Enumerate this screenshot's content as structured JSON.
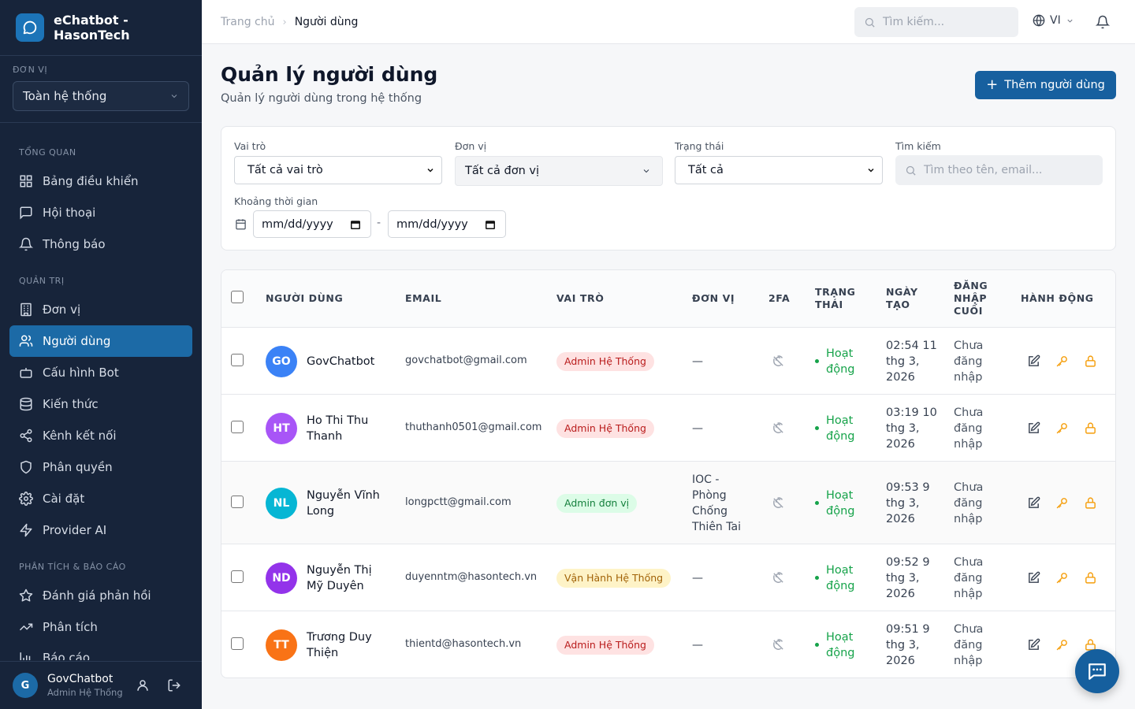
{
  "app": {
    "name": "eChatbot - HasonTech"
  },
  "sidebar": {
    "unit_label": "ĐƠN VỊ",
    "unit_value": "Toàn hệ thống",
    "sections": {
      "overview": "TỔNG QUAN",
      "admin": "QUẢN TRỊ",
      "analytics": "PHÂN TÍCH & BÁO CÁO"
    },
    "items": [
      {
        "label": "Bảng điều khiển",
        "icon": "dashboard-icon"
      },
      {
        "label": "Hội thoại",
        "icon": "chat-icon"
      },
      {
        "label": "Thông báo",
        "icon": "bell-icon"
      },
      {
        "label": "Đơn vị",
        "icon": "building-icon"
      },
      {
        "label": "Người dùng",
        "icon": "users-icon",
        "active": true
      },
      {
        "label": "Cấu hình Bot",
        "icon": "bot-icon"
      },
      {
        "label": "Kiến thức",
        "icon": "database-icon"
      },
      {
        "label": "Kênh kết nối",
        "icon": "share-icon"
      },
      {
        "label": "Phân quyền",
        "icon": "shield-icon"
      },
      {
        "label": "Cài đặt",
        "icon": "gear-icon"
      },
      {
        "label": "Provider AI",
        "icon": "bolt-icon"
      },
      {
        "label": "Đánh giá phản hồi",
        "icon": "star-icon"
      },
      {
        "label": "Phân tích",
        "icon": "trend-icon"
      },
      {
        "label": "Báo cáo",
        "icon": "bar-chart-icon"
      }
    ],
    "user": {
      "initial": "G",
      "name": "GovChatbot",
      "role": "Admin Hệ Thống"
    }
  },
  "topbar": {
    "breadcrumb": [
      "Trang chủ",
      "Người dùng"
    ],
    "search_placeholder": "Tìm kiếm...",
    "lang": "VI"
  },
  "page": {
    "title": "Quản lý người dùng",
    "subtitle": "Quản lý người dùng trong hệ thống",
    "add_button": "Thêm người dùng"
  },
  "filters": {
    "role_label": "Vai trò",
    "role_value": "Tất cả vai trò",
    "unit_label": "Đơn vị",
    "unit_value": "Tất cả đơn vị",
    "status_label": "Trạng thái",
    "status_value": "Tất cả",
    "search_label": "Tìm kiếm",
    "search_placeholder": "Tìm theo tên, email...",
    "range_label": "Khoảng thời gian",
    "date_from": "mm/dd/yyyy",
    "date_to": "mm/dd/yyyy",
    "range_sep": "-"
  },
  "table": {
    "headers": {
      "user": "NGƯỜI DÙNG",
      "email": "EMAIL",
      "role": "VAI TRÒ",
      "unit": "ĐƠN VỊ",
      "tfa": "2FA",
      "status": "TRẠNG THÁI",
      "created": "NGÀY TẠO",
      "last_login": "ĐĂNG NHẬP CUỐI",
      "actions": "HÀNH ĐỘNG"
    },
    "rows": [
      {
        "initials": "GO",
        "avatar_color": "#3b82f6",
        "name": "GovChatbot",
        "email": "govchatbot@gmail.com",
        "role": "Admin Hệ Thống",
        "role_kind": "red",
        "unit": "—",
        "status": "Hoạt động",
        "created": "02:54 11 thg 3, 2026",
        "last_login": "Chưa đăng nhập"
      },
      {
        "initials": "HT",
        "avatar_color": "#a855f7",
        "name": "Ho Thi Thu Thanh",
        "email": "thuthanh0501@gmail.com",
        "role": "Admin Hệ Thống",
        "role_kind": "red",
        "unit": "—",
        "status": "Hoạt động",
        "created": "03:19 10 thg 3, 2026",
        "last_login": "Chưa đăng nhập"
      },
      {
        "initials": "NL",
        "avatar_color": "#06b6d4",
        "name": "Nguyễn Vĩnh Long",
        "email": "longpctt@gmail.com",
        "role": "Admin đơn vị",
        "role_kind": "green",
        "unit": "IOC - Phòng Chống Thiên Tai",
        "status": "Hoạt động",
        "created": "09:53 9 thg 3, 2026",
        "last_login": "Chưa đăng nhập"
      },
      {
        "initials": "ND",
        "avatar_color": "#9333ea",
        "name": "Nguyễn Thị Mỹ Duyên",
        "email": "duyenntm@hasontech.vn",
        "role": "Vận Hành Hệ Thống",
        "role_kind": "yellow",
        "unit": "—",
        "status": "Hoạt động",
        "created": "09:52 9 thg 3, 2026",
        "last_login": "Chưa đăng nhập"
      },
      {
        "initials": "TT",
        "avatar_color": "#f97316",
        "name": "Trương Duy Thiện",
        "email": "thientd@hasontech.vn",
        "role": "Admin Hệ Thống",
        "role_kind": "red",
        "unit": "—",
        "status": "Hoạt động",
        "created": "09:51 9 thg 3, 2026",
        "last_login": "Chưa đăng nhập"
      }
    ]
  },
  "colors": {
    "sidebar_bg": "#17243a",
    "accent": "#1c6aa6",
    "primary_button": "#17609f",
    "status_active": "#16a34a",
    "action_icon": "#f59e0b"
  }
}
